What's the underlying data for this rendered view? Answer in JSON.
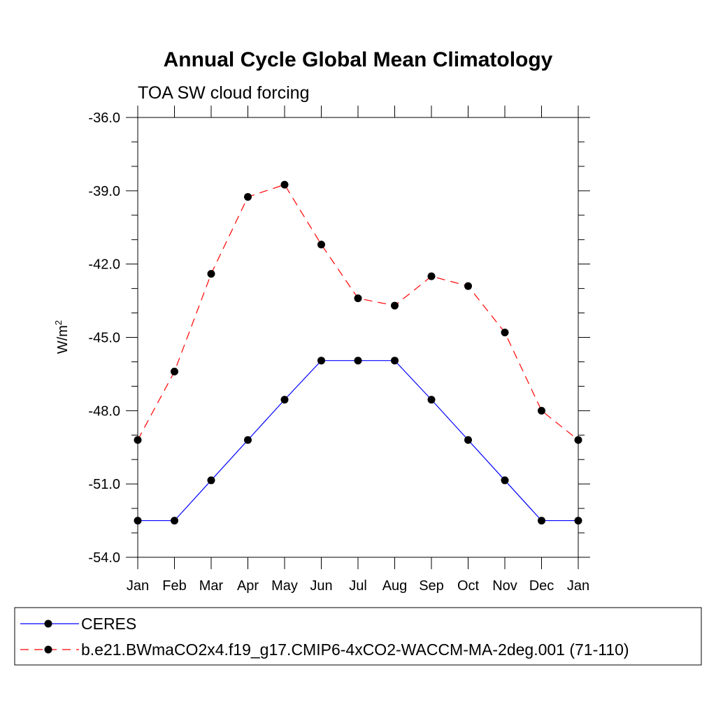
{
  "chart_data": {
    "type": "line",
    "title": "Annual Cycle Global Mean Climatology",
    "subtitle": "TOA SW cloud forcing",
    "xlabel": "",
    "ylabel": "W/m",
    "ylabel_sup": "2",
    "categories": [
      "Jan",
      "Feb",
      "Mar",
      "Apr",
      "May",
      "Jun",
      "Jul",
      "Aug",
      "Sep",
      "Oct",
      "Nov",
      "Dec",
      "Jan"
    ],
    "ylim": [
      -54.0,
      -36.0
    ],
    "yticks": [
      -36.0,
      -39.0,
      -42.0,
      -45.0,
      -48.0,
      -51.0,
      -54.0
    ],
    "ytick_labels": [
      "-36.0",
      "-39.0",
      "-42.0",
      "-45.0",
      "-48.0",
      "-51.0",
      "-54.0"
    ],
    "series": [
      {
        "name": "CERES",
        "color": "#0000ff",
        "dash": "solid",
        "values": [
          -52.5,
          -52.5,
          -50.85,
          -49.2,
          -47.55,
          -45.95,
          -45.95,
          -45.95,
          -47.55,
          -49.2,
          -50.85,
          -52.5,
          -52.5
        ]
      },
      {
        "name": "b.e21.BWmaCO2x4.f19_g17.CMIP6-4xCO2-WACCM-MA-2deg.001 (71-110)",
        "color": "#ff0000",
        "dash": "dashed",
        "values": [
          -49.2,
          -46.4,
          -42.4,
          -39.25,
          -38.75,
          -41.2,
          -43.4,
          -43.7,
          -42.5,
          -42.9,
          -44.8,
          -48.0,
          -49.2
        ]
      }
    ]
  }
}
